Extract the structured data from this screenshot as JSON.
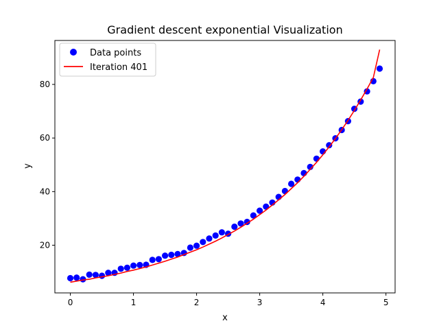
{
  "chart_data": {
    "type": "scatter",
    "title": "Gradient descent exponential Visualization",
    "xlabel": "x",
    "ylabel": "y",
    "xlim": [
      -0.245,
      5.145
    ],
    "ylim": [
      2.2,
      96.4
    ],
    "xticks": [
      0,
      1,
      2,
      3,
      4,
      5
    ],
    "yticks": [
      20,
      40,
      60,
      80
    ],
    "xtick_labels": [
      "0",
      "1",
      "2",
      "3",
      "4",
      "5"
    ],
    "ytick_labels": [
      "20",
      "40",
      "60",
      "80"
    ],
    "grid": false,
    "legend_position": "top-left",
    "colors": {
      "points": "#0000ff",
      "line": "#ff0000"
    },
    "series": [
      {
        "name": "Data points",
        "kind": "scatter",
        "x": [
          0.0,
          0.1,
          0.2,
          0.3,
          0.4,
          0.5,
          0.6,
          0.7,
          0.8,
          0.9,
          1.0,
          1.1,
          1.2,
          1.3,
          1.4,
          1.5,
          1.6,
          1.7,
          1.8,
          1.9,
          2.0,
          2.1,
          2.2,
          2.3,
          2.4,
          2.5,
          2.6,
          2.7,
          2.8,
          2.9,
          3.0,
          3.1,
          3.2,
          3.3,
          3.4,
          3.5,
          3.6,
          3.7,
          3.8,
          3.9,
          4.0,
          4.1,
          4.2,
          4.3,
          4.4,
          4.5,
          4.6,
          4.7,
          4.8,
          4.9
        ],
        "y": [
          7.7,
          7.9,
          7.3,
          9.0,
          8.9,
          8.6,
          9.7,
          9.7,
          11.2,
          11.6,
          12.4,
          12.6,
          12.7,
          14.5,
          14.8,
          16.1,
          16.4,
          16.7,
          17.1,
          19.1,
          19.8,
          21.2,
          22.5,
          23.6,
          24.8,
          24.3,
          26.9,
          28.1,
          28.7,
          31.1,
          32.9,
          34.4,
          35.9,
          38.0,
          40.2,
          42.9,
          44.5,
          46.9,
          49.2,
          52.3,
          55.0,
          57.3,
          59.9,
          63.0,
          66.3,
          70.9,
          73.6,
          77.4,
          81.2,
          85.9
        ]
      },
      {
        "name": "Iteration 401",
        "kind": "line",
        "x": [
          0.0,
          0.1,
          0.2,
          0.3,
          0.4,
          0.5,
          0.6,
          0.7,
          0.8,
          0.9,
          1.0,
          1.1,
          1.2,
          1.3,
          1.4,
          1.5,
          1.6,
          1.7,
          1.8,
          1.9,
          2.0,
          2.1,
          2.2,
          2.3,
          2.4,
          2.5,
          2.6,
          2.7,
          2.8,
          2.9,
          3.0,
          3.1,
          3.2,
          3.3,
          3.4,
          3.5,
          3.6,
          3.7,
          3.8,
          3.9,
          4.0,
          4.1,
          4.2,
          4.3,
          4.4,
          4.5,
          4.6,
          4.7,
          4.8,
          4.9
        ],
        "y": [
          6.2,
          6.6,
          7.0,
          7.3,
          7.8,
          8.2,
          8.6,
          9.1,
          9.6,
          10.2,
          10.7,
          11.3,
          11.9,
          12.6,
          13.3,
          14.0,
          14.8,
          15.6,
          16.5,
          17.4,
          18.3,
          19.3,
          20.4,
          21.5,
          22.7,
          24.0,
          25.3,
          26.7,
          28.2,
          29.7,
          31.4,
          33.1,
          35.0,
          36.9,
          38.9,
          41.1,
          43.3,
          45.7,
          48.3,
          50.9,
          53.7,
          56.7,
          59.8,
          63.1,
          66.6,
          70.3,
          74.2,
          78.3,
          82.6,
          93.0
        ]
      }
    ]
  }
}
